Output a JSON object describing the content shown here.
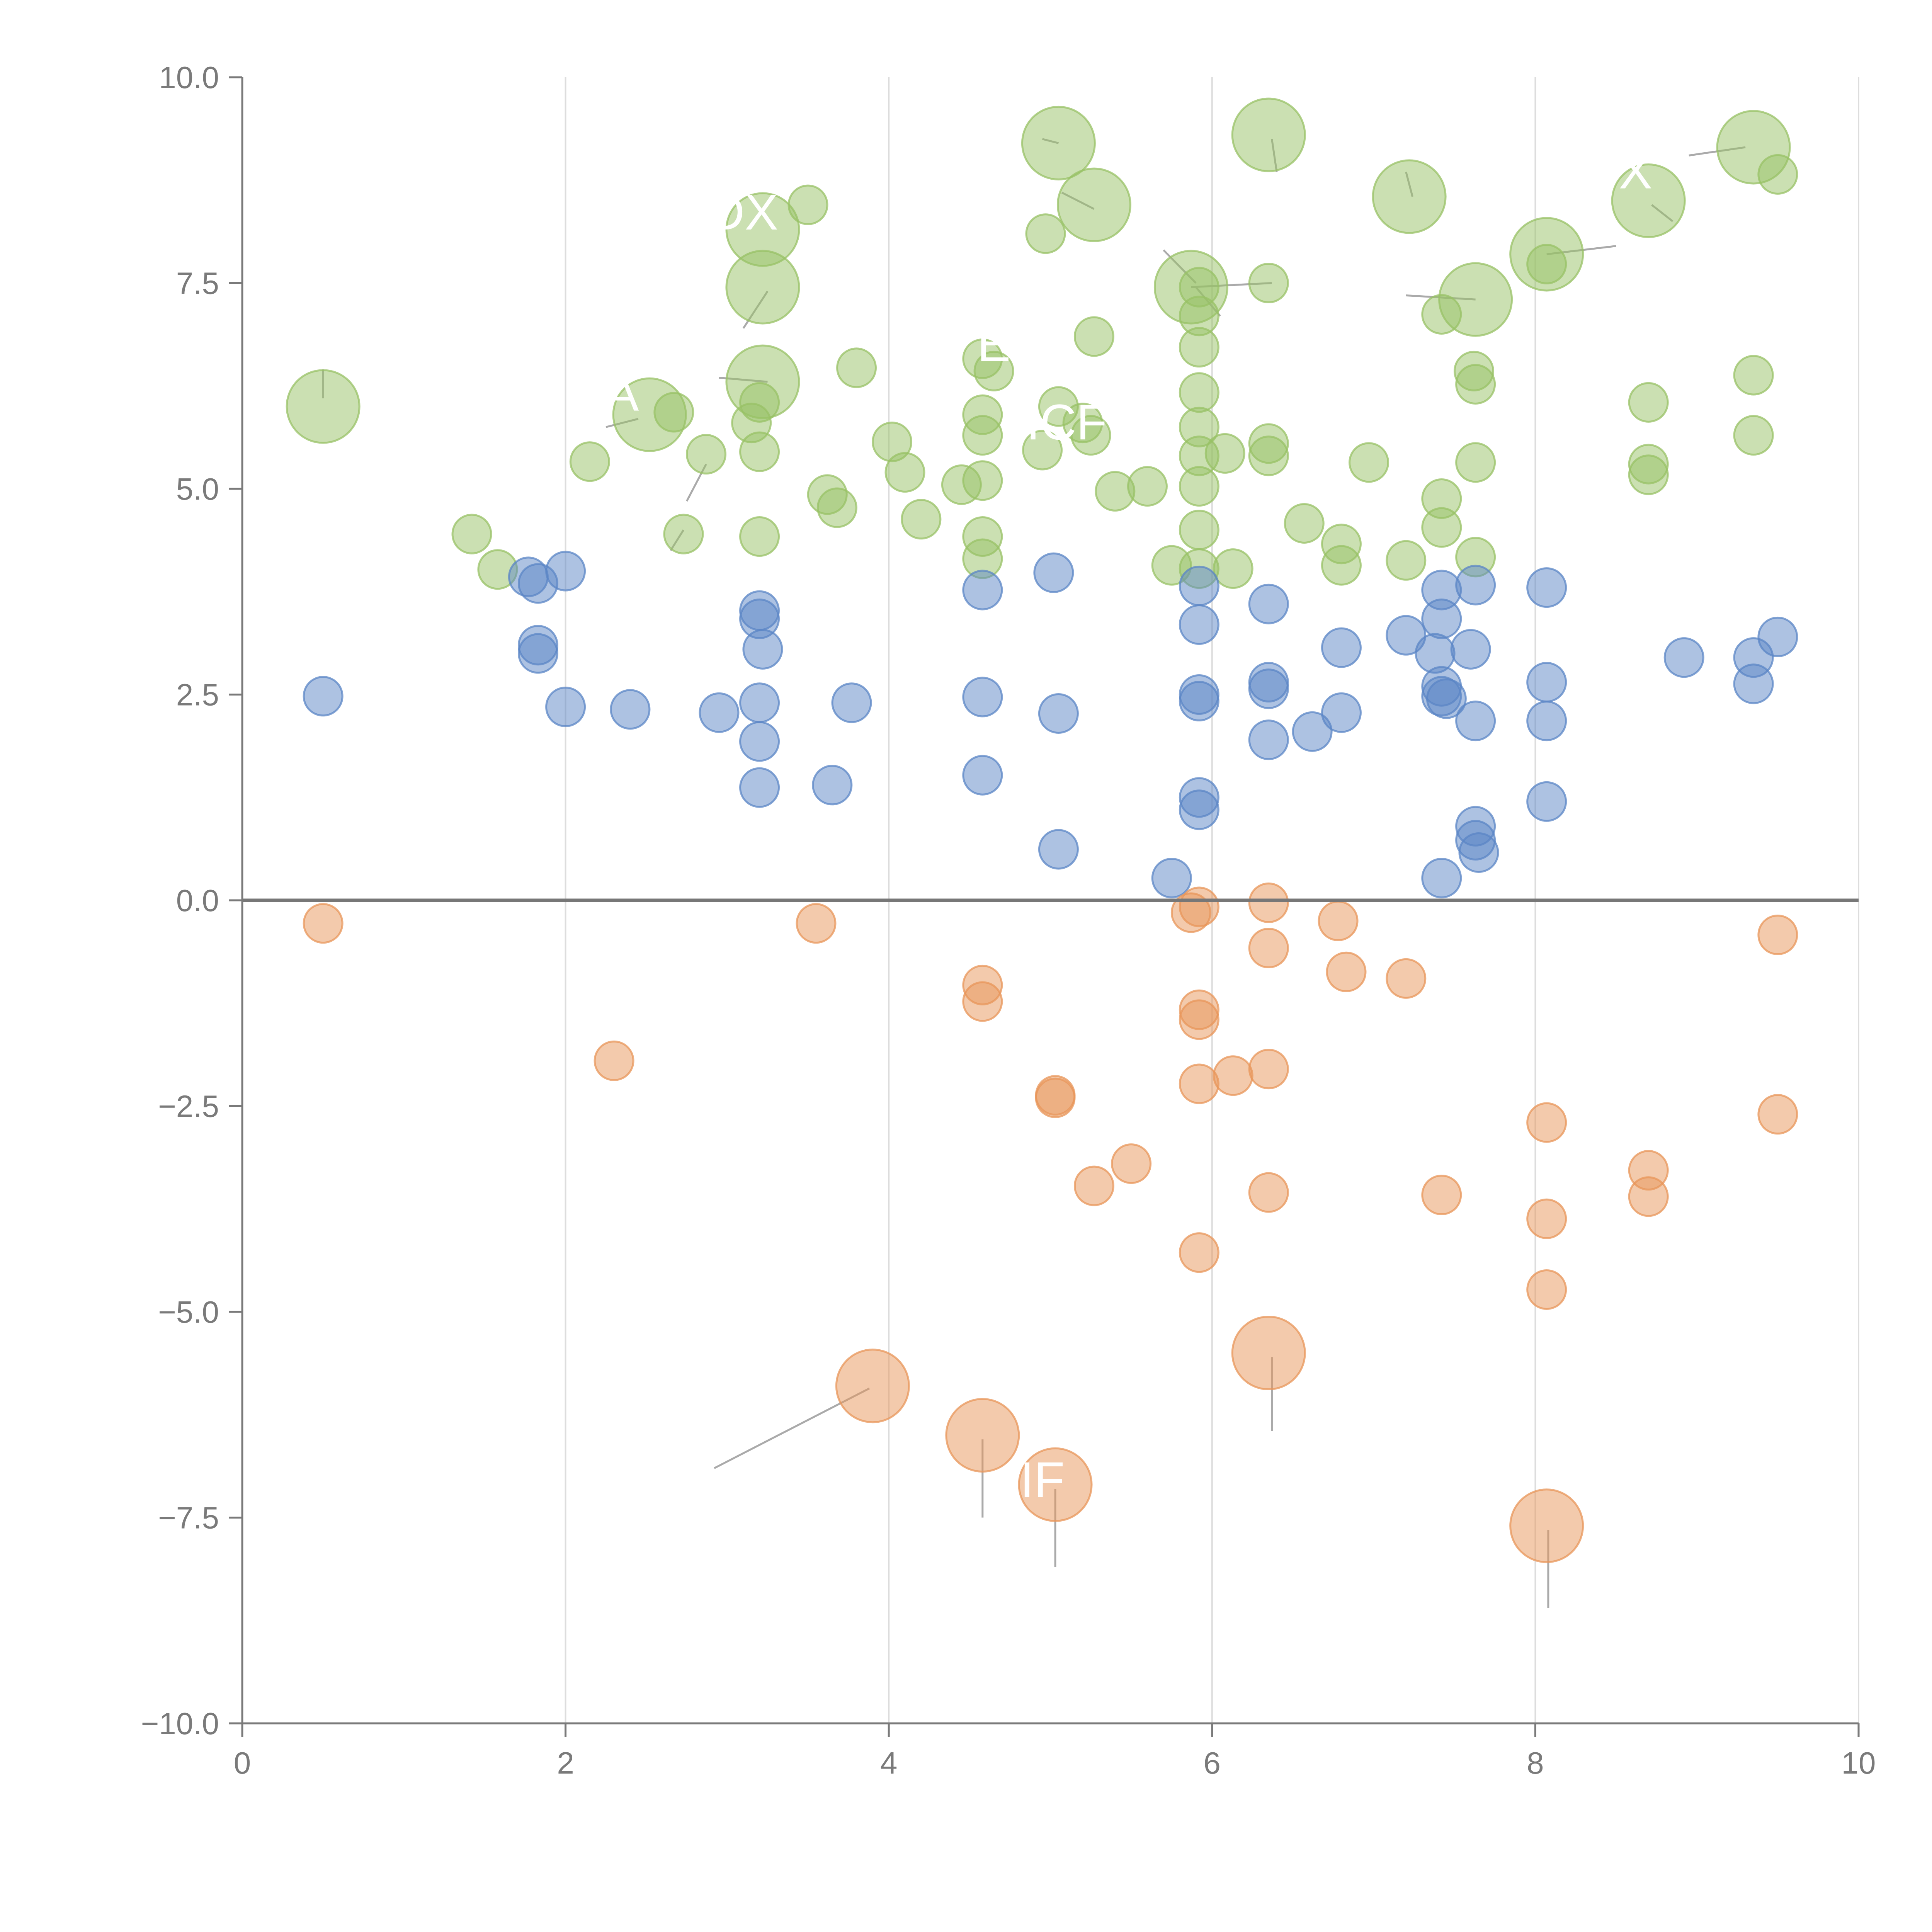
{
  "chart_data": {
    "type": "scatter",
    "title": "",
    "xlabel": "",
    "ylabel": "",
    "xlim": [
      0,
      10
    ],
    "ylim": [
      -10,
      10
    ],
    "grid": "vertical",
    "baseline": 0,
    "x_ticks": [
      {
        "value": 0,
        "label": "0"
      },
      {
        "value": 2,
        "label": "2"
      },
      {
        "value": 4,
        "label": "4"
      },
      {
        "value": 6,
        "label": "6"
      },
      {
        "value": 8,
        "label": "8"
      },
      {
        "value": 10,
        "label": "10"
      }
    ],
    "y_ticks": [
      {
        "value": 10,
        "label": "10.0"
      },
      {
        "value": 7.5,
        "label": "7.5"
      },
      {
        "value": 5,
        "label": "5.0"
      },
      {
        "value": 2.5,
        "label": "2.5"
      },
      {
        "value": 0,
        "label": "0.0"
      },
      {
        "value": -2.5,
        "label": "−2.5"
      },
      {
        "value": -5,
        "label": "−5.0"
      },
      {
        "value": -7.5,
        "label": "−7.5"
      },
      {
        "value": -10,
        "label": "−10.0"
      }
    ],
    "colors": {
      "green": "#98c266",
      "blue": "#5b86c5",
      "orange": "#e8955a",
      "axis": "#7a7a7a",
      "grid": "#dddddd",
      "baseline": "#777777",
      "leader": "#aaaaaa",
      "label": "#ffffff"
    },
    "series": [
      {
        "name": "green",
        "points": [
          [
            0.5,
            6.0,
            2
          ],
          [
            1.42,
            4.45,
            1
          ],
          [
            1.58,
            4.02,
            1
          ],
          [
            2.15,
            5.33,
            1
          ],
          [
            2.52,
            5.9,
            2
          ],
          [
            2.67,
            5.93,
            1
          ],
          [
            2.73,
            4.45,
            1
          ],
          [
            2.87,
            5.42,
            1
          ],
          [
            3.15,
            5.8,
            1
          ],
          [
            3.2,
            6.05,
            1
          ],
          [
            3.2,
            5.45,
            1
          ],
          [
            3.2,
            4.42,
            1
          ],
          [
            3.22,
            6.3,
            2
          ],
          [
            3.22,
            7.45,
            2
          ],
          [
            3.22,
            8.15,
            2
          ],
          [
            3.5,
            8.45,
            1
          ],
          [
            3.62,
            4.93,
            1
          ],
          [
            3.68,
            4.77,
            1
          ],
          [
            3.8,
            6.47,
            1
          ],
          [
            4.02,
            5.57,
            1
          ],
          [
            4.1,
            5.2,
            1
          ],
          [
            4.2,
            4.63,
            1
          ],
          [
            4.45,
            5.05,
            1
          ],
          [
            4.58,
            5.1,
            1
          ],
          [
            4.58,
            5.65,
            1
          ],
          [
            4.58,
            5.9,
            1
          ],
          [
            4.58,
            4.42,
            1
          ],
          [
            4.58,
            4.15,
            1
          ],
          [
            4.58,
            6.58,
            1
          ],
          [
            4.65,
            6.43,
            1
          ],
          [
            4.95,
            5.47,
            1
          ],
          [
            4.97,
            8.1,
            1
          ],
          [
            5.05,
            9.2,
            2
          ],
          [
            5.05,
            6.0,
            1
          ],
          [
            5.2,
            5.8,
            1
          ],
          [
            5.25,
            5.65,
            1
          ],
          [
            5.27,
            8.45,
            2
          ],
          [
            5.27,
            6.85,
            1
          ],
          [
            5.4,
            4.97,
            1
          ],
          [
            5.6,
            5.03,
            1
          ],
          [
            5.75,
            4.07,
            1
          ],
          [
            5.87,
            7.45,
            2
          ],
          [
            5.92,
            7.45,
            1
          ],
          [
            5.92,
            7.1,
            1
          ],
          [
            5.92,
            6.72,
            1
          ],
          [
            5.92,
            6.17,
            1
          ],
          [
            5.92,
            5.75,
            1
          ],
          [
            5.92,
            5.4,
            1
          ],
          [
            5.92,
            5.03,
            1
          ],
          [
            5.92,
            4.5,
            1
          ],
          [
            5.92,
            4.03,
            1
          ],
          [
            6.13,
            4.03,
            1
          ],
          [
            6.08,
            5.43,
            1
          ],
          [
            6.35,
            7.5,
            1
          ],
          [
            6.35,
            5.55,
            1
          ],
          [
            6.35,
            5.4,
            1
          ],
          [
            6.35,
            9.3,
            2
          ],
          [
            6.57,
            4.58,
            1
          ],
          [
            6.8,
            4.33,
            1
          ],
          [
            6.8,
            4.07,
            1
          ],
          [
            6.97,
            5.32,
            1
          ],
          [
            7.2,
            4.13,
            1
          ],
          [
            7.22,
            8.55,
            2
          ],
          [
            7.42,
            7.12,
            1
          ],
          [
            7.42,
            4.88,
            1
          ],
          [
            7.42,
            4.53,
            1
          ],
          [
            7.62,
            6.43,
            1
          ],
          [
            7.63,
            7.3,
            2
          ],
          [
            7.63,
            6.27,
            1
          ],
          [
            7.63,
            5.32,
            1
          ],
          [
            7.63,
            4.17,
            1
          ],
          [
            8.07,
            7.85,
            2
          ],
          [
            8.07,
            7.73,
            1
          ],
          [
            8.7,
            8.5,
            2
          ],
          [
            8.7,
            6.05,
            1
          ],
          [
            8.7,
            5.3,
            1
          ],
          [
            8.7,
            5.17,
            1
          ],
          [
            9.35,
            9.15,
            2
          ],
          [
            9.35,
            6.38,
            1
          ],
          [
            9.35,
            5.65,
            1
          ],
          [
            9.5,
            8.82,
            1
          ]
        ]
      },
      {
        "name": "blue",
        "points": [
          [
            0.5,
            2.48,
            1
          ],
          [
            1.77,
            3.93,
            1
          ],
          [
            1.83,
            3.85,
            1
          ],
          [
            1.83,
            3.1,
            1
          ],
          [
            1.83,
            3.0,
            1
          ],
          [
            2.0,
            2.35,
            1
          ],
          [
            2.0,
            4.0,
            1
          ],
          [
            2.4,
            2.32,
            1
          ],
          [
            2.95,
            2.28,
            1
          ],
          [
            3.2,
            3.52,
            1
          ],
          [
            3.2,
            3.42,
            1
          ],
          [
            3.22,
            3.05,
            1
          ],
          [
            3.2,
            2.4,
            1
          ],
          [
            3.2,
            1.93,
            1
          ],
          [
            3.2,
            1.37,
            1
          ],
          [
            3.65,
            1.4,
            1
          ],
          [
            3.77,
            2.4,
            1
          ],
          [
            4.58,
            3.77,
            1
          ],
          [
            4.58,
            2.47,
            1
          ],
          [
            4.58,
            1.52,
            1
          ],
          [
            5.02,
            3.98,
            1
          ],
          [
            5.05,
            2.27,
            1
          ],
          [
            5.05,
            0.62,
            1
          ],
          [
            5.75,
            0.27,
            1
          ],
          [
            5.92,
            3.82,
            1
          ],
          [
            5.92,
            3.35,
            1
          ],
          [
            5.92,
            2.5,
            1
          ],
          [
            5.92,
            2.42,
            1
          ],
          [
            5.92,
            1.25,
            1
          ],
          [
            5.92,
            1.1,
            1
          ],
          [
            6.35,
            3.6,
            1
          ],
          [
            6.35,
            2.65,
            1
          ],
          [
            6.35,
            2.57,
            1
          ],
          [
            6.35,
            1.95,
            1
          ],
          [
            6.62,
            2.05,
            1
          ],
          [
            6.8,
            3.07,
            1
          ],
          [
            6.8,
            2.28,
            1
          ],
          [
            7.2,
            3.22,
            1
          ],
          [
            7.42,
            3.77,
            1
          ],
          [
            7.42,
            3.42,
            1
          ],
          [
            7.42,
            2.6,
            1
          ],
          [
            7.42,
            2.48,
            1
          ],
          [
            7.45,
            2.45,
            1
          ],
          [
            7.42,
            0.27,
            1
          ],
          [
            7.38,
            3.0,
            1
          ],
          [
            7.63,
            3.83,
            1
          ],
          [
            7.6,
            3.05,
            1
          ],
          [
            7.63,
            2.18,
            1
          ],
          [
            7.63,
            0.9,
            1
          ],
          [
            7.63,
            0.73,
            1
          ],
          [
            7.65,
            0.58,
            1
          ],
          [
            8.07,
            3.8,
            1
          ],
          [
            8.07,
            2.65,
            1
          ],
          [
            8.07,
            2.18,
            1
          ],
          [
            8.07,
            1.2,
            1
          ],
          [
            8.92,
            2.95,
            1
          ],
          [
            9.35,
            2.95,
            1
          ],
          [
            9.35,
            2.63,
            1
          ],
          [
            9.5,
            3.2,
            1
          ]
        ]
      },
      {
        "name": "orange",
        "points": [
          [
            0.5,
            -0.28,
            1
          ],
          [
            2.3,
            -1.95,
            1
          ],
          [
            3.55,
            -0.28,
            1
          ],
          [
            3.9,
            -5.9,
            2
          ],
          [
            4.58,
            -1.03,
            1
          ],
          [
            4.58,
            -1.23,
            1
          ],
          [
            4.58,
            -6.5,
            2
          ],
          [
            5.03,
            -2.37,
            1
          ],
          [
            5.03,
            -2.4,
            1
          ],
          [
            5.03,
            -7.1,
            2
          ],
          [
            5.27,
            -3.47,
            1
          ],
          [
            5.5,
            -3.2,
            1
          ],
          [
            5.87,
            -0.15,
            1
          ],
          [
            5.92,
            -0.08,
            1
          ],
          [
            5.92,
            -1.33,
            1
          ],
          [
            5.92,
            -1.45,
            1
          ],
          [
            5.92,
            -2.23,
            1
          ],
          [
            5.92,
            -4.28,
            1
          ],
          [
            6.13,
            -2.13,
            1
          ],
          [
            6.35,
            -0.03,
            1
          ],
          [
            6.35,
            -0.58,
            1
          ],
          [
            6.35,
            -2.05,
            1
          ],
          [
            6.35,
            -3.55,
            1
          ],
          [
            6.35,
            -5.5,
            2
          ],
          [
            6.78,
            -0.25,
            1
          ],
          [
            6.83,
            -0.87,
            1
          ],
          [
            7.2,
            -0.95,
            1
          ],
          [
            7.42,
            -3.58,
            1
          ],
          [
            8.07,
            -2.7,
            1
          ],
          [
            8.07,
            -3.87,
            1
          ],
          [
            8.07,
            -4.73,
            1
          ],
          [
            8.07,
            -7.6,
            2
          ],
          [
            8.7,
            -3.28,
            1
          ],
          [
            8.7,
            -3.6,
            1
          ],
          [
            9.5,
            -0.42,
            1
          ],
          [
            9.5,
            -2.6,
            1
          ]
        ]
      }
    ],
    "annotations": [
      {
        "text": "DX",
        "x": 3.1,
        "y": 8.15
      },
      {
        "text": "A",
        "x": 2.35,
        "y": 5.95
      },
      {
        "text": "E",
        "x": 4.65,
        "y": 6.55
      },
      {
        "text": "ICF",
        "x": 5.1,
        "y": 5.6
      },
      {
        "text": "X",
        "x": 8.62,
        "y": 8.65
      },
      {
        "text": "IF",
        "x": 4.95,
        "y": -7.25
      }
    ],
    "leader_lines": [
      {
        "from": [
          3.88,
          -5.93
        ],
        "to": [
          2.92,
          -6.9
        ]
      },
      {
        "from": [
          4.58,
          -6.55
        ],
        "to": [
          4.58,
          -7.5
        ]
      },
      {
        "from": [
          5.03,
          -7.15
        ],
        "to": [
          5.03,
          -8.1
        ]
      },
      {
        "from": [
          6.37,
          -5.55
        ],
        "to": [
          6.37,
          -6.45
        ]
      },
      {
        "from": [
          8.08,
          -7.65
        ],
        "to": [
          8.08,
          -8.6
        ]
      },
      {
        "from": [
          0.5,
          6.1
        ],
        "to": [
          0.5,
          6.45
        ]
      },
      {
        "from": [
          2.45,
          5.85
        ],
        "to": [
          2.25,
          5.75
        ]
      },
      {
        "from": [
          3.25,
          6.3
        ],
        "to": [
          2.95,
          6.35
        ]
      },
      {
        "from": [
          3.25,
          7.4
        ],
        "to": [
          3.1,
          6.95
        ]
      },
      {
        "from": [
          2.87,
          5.3
        ],
        "to": [
          2.75,
          4.85
        ]
      },
      {
        "from": [
          2.73,
          4.5
        ],
        "to": [
          2.65,
          4.25
        ]
      },
      {
        "from": [
          5.87,
          7.45
        ],
        "to": [
          6.37,
          7.5
        ]
      },
      {
        "from": [
          5.9,
          7.5
        ],
        "to": [
          5.7,
          7.9
        ]
      },
      {
        "from": [
          5.9,
          7.45
        ],
        "to": [
          6.05,
          7.1
        ]
      },
      {
        "from": [
          5.27,
          8.4
        ],
        "to": [
          5.07,
          8.6
        ]
      },
      {
        "from": [
          6.37,
          9.25
        ],
        "to": [
          6.4,
          8.85
        ]
      },
      {
        "from": [
          7.24,
          8.55
        ],
        "to": [
          7.2,
          8.85
        ]
      },
      {
        "from": [
          7.63,
          7.3
        ],
        "to": [
          7.2,
          7.35
        ]
      },
      {
        "from": [
          8.07,
          7.85
        ],
        "to": [
          8.5,
          7.95
        ]
      },
      {
        "from": [
          8.72,
          8.45
        ],
        "to": [
          8.85,
          8.25
        ]
      },
      {
        "from": [
          9.3,
          9.15
        ],
        "to": [
          8.95,
          9.05
        ]
      },
      {
        "from": [
          5.05,
          9.2
        ],
        "to": [
          4.95,
          9.25
        ]
      }
    ]
  }
}
